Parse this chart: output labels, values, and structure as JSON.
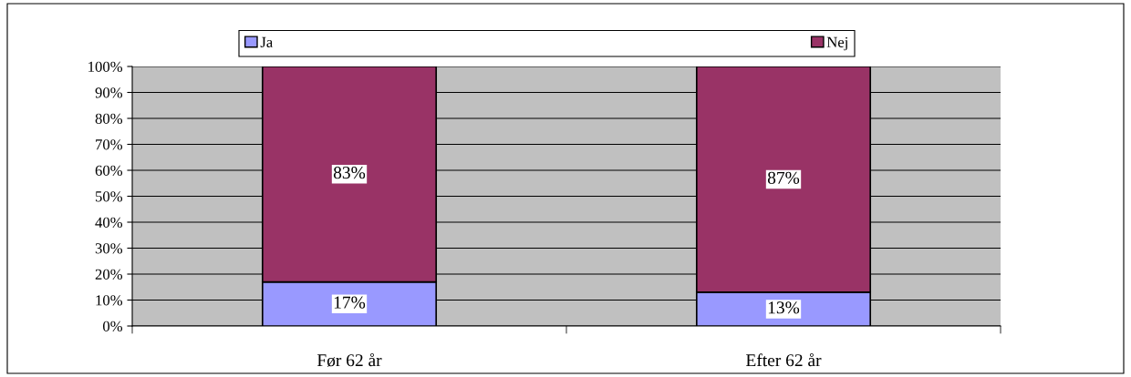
{
  "chart_data": {
    "type": "bar",
    "stacked": true,
    "categories": [
      "Før 62 år",
      "Efter 62 år"
    ],
    "series": [
      {
        "name": "Ja",
        "color": "#9999ff",
        "values": [
          17,
          13
        ]
      },
      {
        "name": "Nej",
        "color": "#993366",
        "values": [
          83,
          87
        ]
      }
    ],
    "ylim": [
      0,
      100
    ],
    "yticks": [
      {
        "value": 0,
        "label": "0%"
      },
      {
        "value": 10,
        "label": "10%"
      },
      {
        "value": 20,
        "label": "20%"
      },
      {
        "value": 30,
        "label": "30%"
      },
      {
        "value": 40,
        "label": "40%"
      },
      {
        "value": 50,
        "label": "50%"
      },
      {
        "value": 60,
        "label": "60%"
      },
      {
        "value": 70,
        "label": "70%"
      },
      {
        "value": 80,
        "label": "80%"
      },
      {
        "value": 90,
        "label": "90%"
      },
      {
        "value": 100,
        "label": "100%"
      }
    ],
    "value_labels": [
      [
        "17%",
        "13%"
      ],
      [
        "83%",
        "87%"
      ]
    ],
    "grid": "y",
    "legend": "top"
  }
}
